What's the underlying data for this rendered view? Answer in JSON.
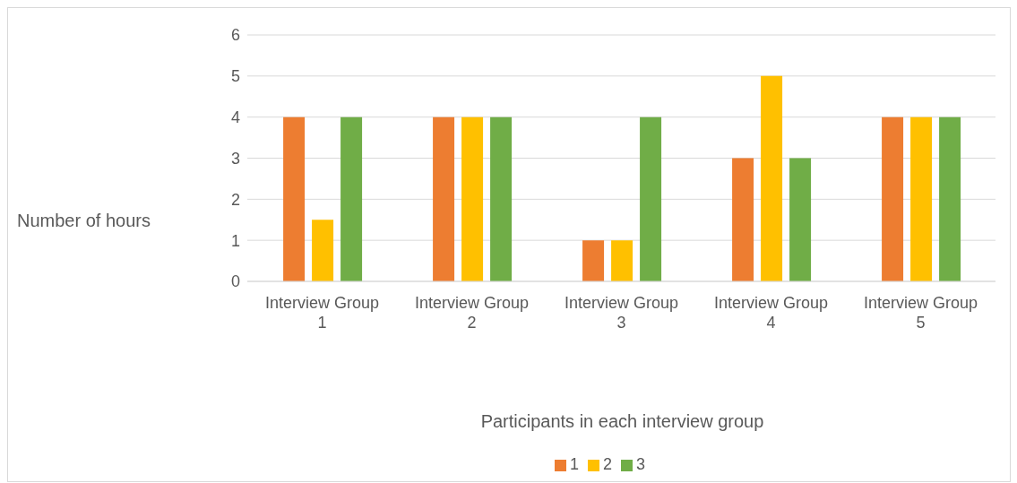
{
  "chart_data": {
    "type": "bar",
    "xlabel": "Participants in each interview group",
    "ylabel": "Number of hours",
    "categories": [
      "Interview Group 1",
      "Interview Group 2",
      "Interview Group 3",
      "Interview Group 4",
      "Interview Group 5"
    ],
    "series": [
      {
        "name": "1",
        "color": "#ed7d31",
        "values": [
          4,
          4,
          1,
          3,
          4
        ]
      },
      {
        "name": "2",
        "color": "#ffc000",
        "values": [
          1.5,
          4,
          1,
          5,
          4
        ]
      },
      {
        "name": "3",
        "color": "#70ad47",
        "values": [
          4,
          4,
          4,
          3,
          4
        ]
      }
    ],
    "ylim": [
      0,
      6
    ],
    "yticks": [
      0,
      1,
      2,
      3,
      4,
      5,
      6
    ],
    "grid": "y",
    "legend": "bottom"
  }
}
